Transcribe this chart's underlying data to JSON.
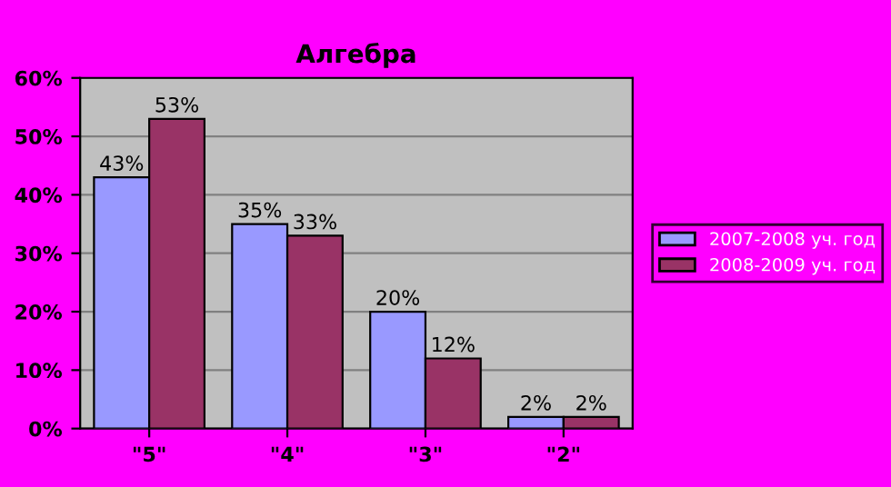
{
  "chart_data": {
    "type": "bar",
    "title": "Алгебра",
    "categories": [
      "\"5\"",
      "\"4\"",
      "\"3\"",
      "\"2\""
    ],
    "series": [
      {
        "name": "2007-2008 уч. год",
        "color": "#9999ff",
        "values": [
          43,
          35,
          20,
          2
        ],
        "value_labels": [
          "43%",
          "35%",
          "20%",
          "2%"
        ]
      },
      {
        "name": "2008-2009 уч. год",
        "color": "#993366",
        "values": [
          53,
          33,
          12,
          2
        ],
        "value_labels": [
          "53%",
          "33%",
          "12%",
          "2%"
        ]
      }
    ],
    "ylim": [
      0,
      60
    ],
    "yticks": [
      {
        "value": 0,
        "label": "0%"
      },
      {
        "value": 10,
        "label": "10%"
      },
      {
        "value": 20,
        "label": "20%"
      },
      {
        "value": 30,
        "label": "30%"
      },
      {
        "value": 40,
        "label": "40%"
      },
      {
        "value": 50,
        "label": "50%"
      },
      {
        "value": 60,
        "label": "60%"
      }
    ],
    "grid": "y",
    "legend": "right"
  }
}
